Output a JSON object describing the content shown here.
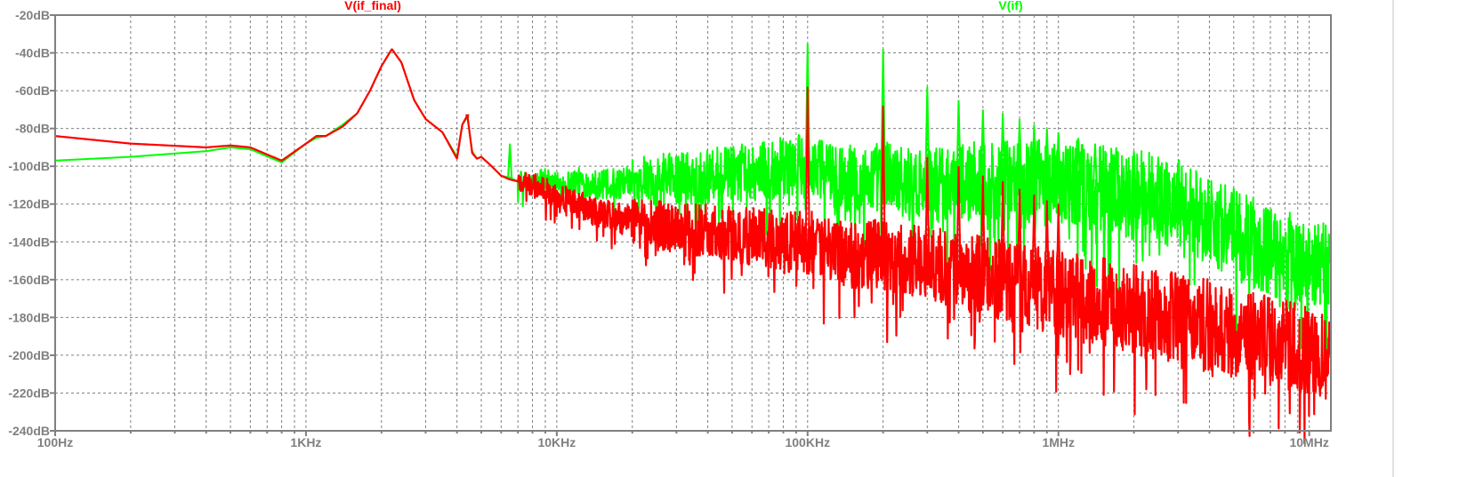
{
  "chart_data": {
    "type": "line",
    "x_scale": "log",
    "xlim_hz": [
      100,
      12200000
    ],
    "ylim_db": [
      -240,
      -20
    ],
    "grid": true,
    "legend_placement": "top",
    "x_ticks": [
      {
        "value": 100,
        "label": "100Hz"
      },
      {
        "value": 1000,
        "label": "1KHz"
      },
      {
        "value": 10000,
        "label": "10KHz"
      },
      {
        "value": 100000,
        "label": "100KHz"
      },
      {
        "value": 1000000,
        "label": "1MHz"
      },
      {
        "value": 10000000,
        "label": "10MHz"
      }
    ],
    "y_ticks": [
      {
        "value": -20,
        "label": "-20dB"
      },
      {
        "value": -40,
        "label": "-40dB"
      },
      {
        "value": -60,
        "label": "-60dB"
      },
      {
        "value": -80,
        "label": "-80dB"
      },
      {
        "value": -100,
        "label": "-100dB"
      },
      {
        "value": -120,
        "label": "-120dB"
      },
      {
        "value": -140,
        "label": "-140dB"
      },
      {
        "value": -160,
        "label": "-160dB"
      },
      {
        "value": -180,
        "label": "-180dB"
      },
      {
        "value": -200,
        "label": "-200dB"
      },
      {
        "value": -220,
        "label": "-220dB"
      },
      {
        "value": -240,
        "label": "-240dB"
      }
    ],
    "series": [
      {
        "name": "V(if)",
        "color": "#00ff00",
        "legend_position": "top-right",
        "x": [
          100,
          200,
          400,
          500,
          600,
          800,
          1000,
          1100,
          1200,
          1400,
          1600,
          1800,
          2000,
          2200,
          2400,
          2700,
          3000,
          3500,
          4000,
          4200,
          4400,
          4600,
          4800,
          5000,
          5500,
          6000,
          6500,
          7000,
          8000,
          9000,
          10000,
          12000,
          15000,
          20000,
          30000,
          50000,
          70000,
          90000,
          100000,
          110000,
          130000,
          170000,
          200000,
          220000,
          260000,
          300000,
          330000,
          400000,
          500000,
          700000,
          1000000,
          1500000,
          2000000,
          3000000,
          4000000,
          5000000,
          7000000,
          10000000,
          12200000
        ],
        "y": [
          -97,
          -95,
          -92,
          -90,
          -91,
          -98,
          -88,
          -85,
          -84,
          -78,
          -72,
          -60,
          -47,
          -38,
          -45,
          -65,
          -75,
          -82,
          -95,
          -78,
          -74,
          -92,
          -96,
          -95,
          -100,
          -105,
          -106,
          -108,
          -110,
          -106,
          -110,
          -108,
          -110,
          -108,
          -106,
          -104,
          -102,
          -100,
          -100,
          -102,
          -105,
          -108,
          -104,
          -106,
          -110,
          -108,
          -110,
          -108,
          -108,
          -108,
          -108,
          -112,
          -115,
          -120,
          -128,
          -135,
          -145,
          -152,
          -155
        ],
        "spikes": [
          {
            "x": 4400,
            "y": -74
          },
          {
            "x": 6500,
            "y": -88
          },
          {
            "x": 100000,
            "y": -35
          },
          {
            "x": 200000,
            "y": -38
          },
          {
            "x": 300000,
            "y": -58
          },
          {
            "x": 400000,
            "y": -65
          },
          {
            "x": 500000,
            "y": -70
          },
          {
            "x": 600000,
            "y": -72
          },
          {
            "x": 700000,
            "y": -75
          },
          {
            "x": 800000,
            "y": -78
          },
          {
            "x": 900000,
            "y": -80
          },
          {
            "x": 1000000,
            "y": -82
          },
          {
            "x": 1200000,
            "y": -85
          },
          {
            "x": 1400000,
            "y": -88
          },
          {
            "x": 1700000,
            "y": -90
          },
          {
            "x": 2000000,
            "y": -92
          },
          {
            "x": 2500000,
            "y": -95
          },
          {
            "x": 3000000,
            "y": -98
          }
        ]
      },
      {
        "name": "V(if_final)",
        "color": "#ff0000",
        "legend_position": "top-left",
        "x": [
          100,
          200,
          400,
          500,
          600,
          800,
          1000,
          1100,
          1200,
          1400,
          1600,
          1800,
          2000,
          2200,
          2400,
          2700,
          3000,
          3500,
          4000,
          4200,
          4400,
          4600,
          4800,
          5000,
          5500,
          6000,
          6500,
          7000,
          8000,
          9000,
          10000,
          12000,
          15000,
          20000,
          30000,
          50000,
          70000,
          90000,
          100000,
          110000,
          130000,
          170000,
          200000,
          220000,
          260000,
          300000,
          330000,
          400000,
          500000,
          700000,
          1000000,
          1500000,
          2000000,
          3000000,
          4000000,
          5000000,
          7000000,
          10000000,
          12200000
        ],
        "y": [
          -84,
          -88,
          -90,
          -89,
          -90,
          -97,
          -88,
          -84,
          -84,
          -79,
          -72,
          -60,
          -47,
          -38,
          -45,
          -65,
          -75,
          -82,
          -96,
          -78,
          -73,
          -93,
          -96,
          -95,
          -100,
          -105,
          -107,
          -108,
          -110,
          -112,
          -115,
          -120,
          -125,
          -130,
          -133,
          -136,
          -138,
          -140,
          -140,
          -142,
          -145,
          -148,
          -145,
          -148,
          -150,
          -150,
          -152,
          -155,
          -158,
          -162,
          -168,
          -172,
          -176,
          -180,
          -184,
          -188,
          -192,
          -198,
          -200
        ],
        "spikes": [
          {
            "x": 4400,
            "y": -73
          },
          {
            "x": 100000,
            "y": -58
          },
          {
            "x": 200000,
            "y": -68
          },
          {
            "x": 300000,
            "y": -95
          },
          {
            "x": 400000,
            "y": -100
          },
          {
            "x": 500000,
            "y": -105
          },
          {
            "x": 600000,
            "y": -108
          },
          {
            "x": 700000,
            "y": -112
          },
          {
            "x": 800000,
            "y": -115
          },
          {
            "x": 900000,
            "y": -118
          },
          {
            "x": 1000000,
            "y": -120
          }
        ]
      }
    ]
  }
}
